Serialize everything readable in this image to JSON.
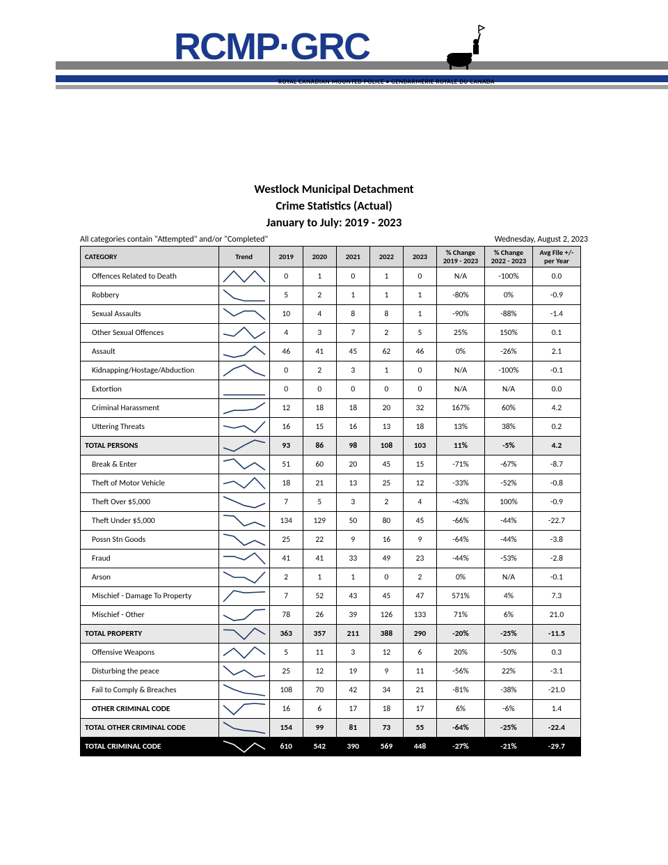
{
  "header": {
    "logo_text": "RCMP·GRC",
    "subtitle": "ROYAL CANADIAN MOUNTED POLICE • GENDARMERIE ROYALE DU CANADA",
    "logo_color": "#1a3a8a",
    "bar_grey": "#808080",
    "bar_blue": "#1a3a8a"
  },
  "title": {
    "line1": "Westlock Municipal Detachment",
    "line2": "Crime Statistics (Actual)",
    "line3": "January to July: 2019 - 2023"
  },
  "meta": {
    "note": "All categories contain \"Attempted\" and/or \"Completed\"",
    "date": "Wednesday, August 2, 2023"
  },
  "table": {
    "headers": [
      "CATEGORY",
      "Trend",
      "2019",
      "2020",
      "2021",
      "2022",
      "2023",
      "% Change 2019 - 2023",
      "% Change 2022 - 2023",
      "Avg File +/- per Year"
    ],
    "trend_style": {
      "stroke": "#1f3864",
      "stroke_width": 1.6,
      "width": 64,
      "height": 20
    },
    "rows": [
      {
        "cat": "Offences Related to Death",
        "trend": [
          0,
          1,
          0,
          1,
          0
        ],
        "y": [
          "0",
          "1",
          "0",
          "1",
          "0"
        ],
        "p1": "N/A",
        "p2": "-100%",
        "avg": "0.0"
      },
      {
        "cat": "Robbery",
        "trend": [
          5,
          2,
          1,
          1,
          1
        ],
        "y": [
          "5",
          "2",
          "1",
          "1",
          "1"
        ],
        "p1": "-80%",
        "p2": "0%",
        "avg": "-0.9"
      },
      {
        "cat": "Sexual Assaults",
        "trend": [
          10,
          4,
          8,
          8,
          1
        ],
        "y": [
          "10",
          "4",
          "8",
          "8",
          "1"
        ],
        "p1": "-90%",
        "p2": "-88%",
        "avg": "-1.4"
      },
      {
        "cat": "Other Sexual Offences",
        "trend": [
          4,
          3,
          7,
          2,
          5
        ],
        "y": [
          "4",
          "3",
          "7",
          "2",
          "5"
        ],
        "p1": "25%",
        "p2": "150%",
        "avg": "0.1"
      },
      {
        "cat": "Assault",
        "trend": [
          46,
          41,
          45,
          62,
          46
        ],
        "y": [
          "46",
          "41",
          "45",
          "62",
          "46"
        ],
        "p1": "0%",
        "p2": "-26%",
        "avg": "2.1"
      },
      {
        "cat": "Kidnapping/Hostage/Abduction",
        "trend": [
          0,
          2,
          3,
          1,
          0
        ],
        "y": [
          "0",
          "2",
          "3",
          "1",
          "0"
        ],
        "p1": "N/A",
        "p2": "-100%",
        "avg": "-0.1"
      },
      {
        "cat": "Extortion",
        "trend": [
          0,
          0,
          0,
          0,
          0
        ],
        "y": [
          "0",
          "0",
          "0",
          "0",
          "0"
        ],
        "p1": "N/A",
        "p2": "N/A",
        "avg": "0.0"
      },
      {
        "cat": "Criminal Harassment",
        "trend": [
          12,
          18,
          18,
          20,
          32
        ],
        "y": [
          "12",
          "18",
          "18",
          "20",
          "32"
        ],
        "p1": "167%",
        "p2": "60%",
        "avg": "4.2"
      },
      {
        "cat": "Uttering Threats",
        "trend": [
          16,
          15,
          16,
          13,
          18
        ],
        "y": [
          "16",
          "15",
          "16",
          "13",
          "18"
        ],
        "p1": "13%",
        "p2": "38%",
        "avg": "0.2"
      },
      {
        "cat": "TOTAL PERSONS",
        "trend": [
          93,
          86,
          98,
          108,
          103
        ],
        "y": [
          "93",
          "86",
          "98",
          "108",
          "103"
        ],
        "p1": "11%",
        "p2": "-5%",
        "avg": "4.2",
        "cls": "subtotal"
      },
      {
        "cat": "Break & Enter",
        "trend": [
          51,
          60,
          20,
          45,
          15
        ],
        "y": [
          "51",
          "60",
          "20",
          "45",
          "15"
        ],
        "p1": "-71%",
        "p2": "-67%",
        "avg": "-8.7"
      },
      {
        "cat": "Theft of Motor Vehicle",
        "trend": [
          18,
          21,
          13,
          25,
          12
        ],
        "y": [
          "18",
          "21",
          "13",
          "25",
          "12"
        ],
        "p1": "-33%",
        "p2": "-52%",
        "avg": "-0.8"
      },
      {
        "cat": "Theft Over $5,000",
        "trend": [
          7,
          5,
          3,
          2,
          4
        ],
        "y": [
          "7",
          "5",
          "3",
          "2",
          "4"
        ],
        "p1": "-43%",
        "p2": "100%",
        "avg": "-0.9"
      },
      {
        "cat": "Theft Under $5,000",
        "trend": [
          134,
          129,
          50,
          80,
          45
        ],
        "y": [
          "134",
          "129",
          "50",
          "80",
          "45"
        ],
        "p1": "-66%",
        "p2": "-44%",
        "avg": "-22.7"
      },
      {
        "cat": "Possn Stn Goods",
        "trend": [
          25,
          22,
          9,
          16,
          9
        ],
        "y": [
          "25",
          "22",
          "9",
          "16",
          "9"
        ],
        "p1": "-64%",
        "p2": "-44%",
        "avg": "-3.8"
      },
      {
        "cat": "Fraud",
        "trend": [
          41,
          41,
          33,
          49,
          23
        ],
        "y": [
          "41",
          "41",
          "33",
          "49",
          "23"
        ],
        "p1": "-44%",
        "p2": "-53%",
        "avg": "-2.8"
      },
      {
        "cat": "Arson",
        "trend": [
          2,
          1,
          1,
          0,
          2
        ],
        "y": [
          "2",
          "1",
          "1",
          "0",
          "2"
        ],
        "p1": "0%",
        "p2": "N/A",
        "avg": "-0.1"
      },
      {
        "cat": "Mischief - Damage To Property",
        "trend": [
          7,
          52,
          43,
          45,
          47
        ],
        "y": [
          "7",
          "52",
          "43",
          "45",
          "47"
        ],
        "p1": "571%",
        "p2": "4%",
        "avg": "7.3"
      },
      {
        "cat": "Mischief - Other",
        "trend": [
          78,
          26,
          39,
          126,
          133
        ],
        "y": [
          "78",
          "26",
          "39",
          "126",
          "133"
        ],
        "p1": "71%",
        "p2": "6%",
        "avg": "21.0"
      },
      {
        "cat": "TOTAL PROPERTY",
        "trend": [
          363,
          357,
          211,
          388,
          290
        ],
        "y": [
          "363",
          "357",
          "211",
          "388",
          "290"
        ],
        "p1": "-20%",
        "p2": "-25%",
        "avg": "-11.5",
        "cls": "subtotal"
      },
      {
        "cat": "Offensive Weapons",
        "trend": [
          5,
          11,
          3,
          12,
          6
        ],
        "y": [
          "5",
          "11",
          "3",
          "12",
          "6"
        ],
        "p1": "20%",
        "p2": "-50%",
        "avg": "0.3"
      },
      {
        "cat": "Disturbing the peace",
        "trend": [
          25,
          12,
          19,
          9,
          11
        ],
        "y": [
          "25",
          "12",
          "19",
          "9",
          "11"
        ],
        "p1": "-56%",
        "p2": "22%",
        "avg": "-3.1"
      },
      {
        "cat": "Fail to Comply & Breaches",
        "trend": [
          108,
          70,
          42,
          34,
          21
        ],
        "y": [
          "108",
          "70",
          "42",
          "34",
          "21"
        ],
        "p1": "-81%",
        "p2": "-38%",
        "avg": "-21.0"
      },
      {
        "cat": "OTHER CRIMINAL CODE",
        "trend": [
          16,
          6,
          17,
          18,
          17
        ],
        "y": [
          "16",
          "6",
          "17",
          "18",
          "17"
        ],
        "p1": "6%",
        "p2": "-6%",
        "avg": "1.4",
        "bold_cat": true
      },
      {
        "cat": "TOTAL OTHER CRIMINAL CODE",
        "trend": [
          154,
          99,
          81,
          73,
          55
        ],
        "y": [
          "154",
          "99",
          "81",
          "73",
          "55"
        ],
        "p1": "-64%",
        "p2": "-25%",
        "avg": "-22.4",
        "cls": "subtotal"
      },
      {
        "cat": "TOTAL CRIMINAL CODE",
        "trend": [
          610,
          542,
          390,
          569,
          448
        ],
        "y": [
          "610",
          "542",
          "390",
          "569",
          "448"
        ],
        "p1": "-27%",
        "p2": "-21%",
        "avg": "-29.7",
        "cls": "grand"
      }
    ]
  }
}
